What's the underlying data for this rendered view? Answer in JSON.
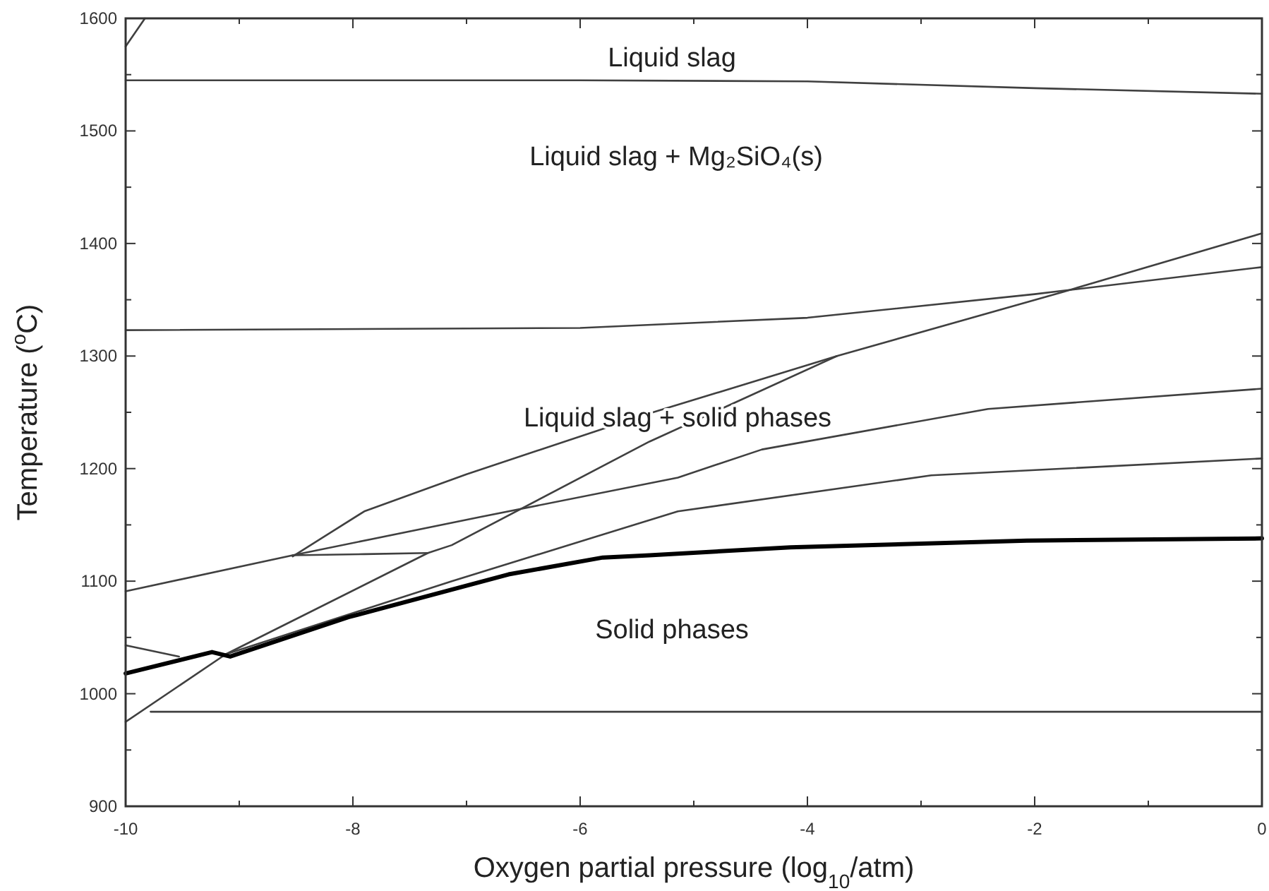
{
  "chart_data": {
    "type": "line",
    "xlabel": "Oxygen partial pressure (log$_{10}$/atm)",
    "ylabel": "Temperature ($^{o}$C)",
    "xlim": [
      -10,
      0
    ],
    "ylim": [
      900,
      1600
    ],
    "xticks": [
      -10,
      {
        "value": -9,
        "label": null
      },
      -8,
      {
        "value": -7,
        "label": null
      },
      -6,
      {
        "value": -5,
        "label": null
      },
      -4,
      {
        "value": -3,
        "label": null
      },
      -2,
      {
        "value": -1,
        "label": null
      },
      0
    ],
    "yticks": [
      900,
      {
        "value": 950,
        "label": null
      },
      1000,
      {
        "value": 1050,
        "label": null
      },
      1100,
      {
        "value": 1150,
        "label": null
      },
      1200,
      {
        "value": 1250,
        "label": null
      },
      1300,
      {
        "value": 1350,
        "label": null
      },
      1400,
      {
        "value": 1450,
        "label": null
      },
      1500,
      {
        "value": 1550,
        "label": null
      },
      1600
    ],
    "grid": false,
    "marker": "none",
    "line_style": "solid",
    "series": [
      {
        "color": "#404040",
        "x": [
          -10,
          -9.83
        ],
        "values": [
          1575,
          1600
        ]
      },
      {
        "color": "#404040",
        "x": [
          -10,
          -6,
          -4,
          -2,
          0
        ],
        "values": [
          1545,
          1545,
          1544,
          1538,
          1533
        ]
      },
      {
        "color": "#404040",
        "x": [
          -10,
          -6,
          -4,
          -2,
          -1.75,
          0
        ],
        "values": [
          1323,
          1325,
          1334,
          1355,
          1358,
          1379
        ]
      },
      {
        "color": "#404040",
        "x": [
          -10,
          -9.12,
          -7.34,
          -7.13,
          -5.39,
          -3.74,
          -1.75,
          0
        ],
        "values": [
          975,
          1035,
          1125,
          1132,
          1224,
          1300,
          1357,
          1409
        ]
      },
      {
        "color": "#404040",
        "x": [
          -8.53,
          -7.9,
          -7.0,
          -5.39,
          -3.74
        ],
        "values": [
          1122,
          1162,
          1195,
          1249,
          1300
        ]
      },
      {
        "color": "#404040",
        "x": [
          -8.53,
          -7.9,
          -7.34
        ],
        "values": [
          1123,
          1124,
          1125
        ]
      },
      {
        "color": "#404040",
        "x": [
          -10,
          -8.53,
          -6.88,
          -5.14,
          -4.4,
          -2.41,
          0
        ],
        "values": [
          1091,
          1123,
          1157,
          1192,
          1217,
          1253,
          1271
        ]
      },
      {
        "color": "#404040",
        "x": [
          -9.12,
          -7.13,
          -5.14,
          -2.91,
          0
        ],
        "values": [
          1035,
          1100,
          1162,
          1194,
          1209
        ]
      },
      {
        "color": "#000000",
        "x": [
          -10,
          -9.24,
          -9.08,
          -8.04,
          -6.63,
          -5.8,
          -5.39,
          -4.15,
          -2.07,
          0
        ],
        "values": [
          1018,
          1037,
          1033,
          1068,
          1106,
          1121,
          1123,
          1130,
          1136,
          1138
        ]
      },
      {
        "color": "#404040",
        "x": [
          -10,
          -9.53
        ],
        "values": [
          1043,
          1033
        ]
      },
      {
        "color": "#404040",
        "x": [
          -9.78,
          0
        ],
        "values": [
          984,
          984
        ]
      }
    ],
    "annotations": [
      "Liquid slag",
      "Liquid slag + Mg₂SiO₄(s)",
      "Liquid slag + solid phases",
      "Solid phases"
    ]
  }
}
